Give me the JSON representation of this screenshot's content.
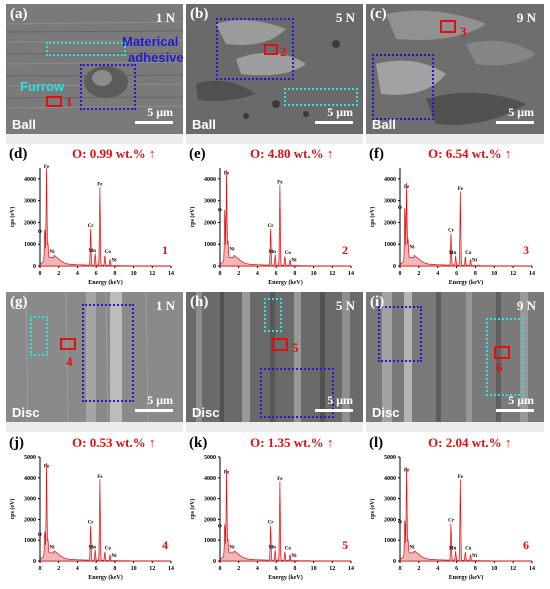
{
  "colors": {
    "spectrum_fill": "#f4b6b6",
    "spectrum_line": "#e01010",
    "blue_box": "#1f1fd0",
    "cyan_box": "#2fe0e0",
    "red_box": "#e01010"
  },
  "sem_panels": [
    {
      "letter": "(a)",
      "load": "1 N",
      "surface": "Ball",
      "scale": "5 μm",
      "marker": "1",
      "annotations": [
        "Materical",
        "adhesive",
        "Furrow"
      ]
    },
    {
      "letter": "(b)",
      "load": "5 N",
      "surface": "Ball",
      "scale": "5 μm",
      "marker": "2"
    },
    {
      "letter": "(c)",
      "load": "9 N",
      "surface": "Ball",
      "scale": "5 μm",
      "marker": "3"
    },
    {
      "letter": "(g)",
      "load": "1 N",
      "surface": "Disc",
      "scale": "5 μm",
      "marker": "4"
    },
    {
      "letter": "(h)",
      "load": "5 N",
      "surface": "Disc",
      "scale": "5 μm",
      "marker": "5"
    },
    {
      "letter": "(i)",
      "load": "9 N",
      "surface": "Disc",
      "scale": "5 μm",
      "marker": "6"
    }
  ],
  "eds_panels": [
    {
      "letter": "(d)",
      "oxygen": "O: 0.99 wt.% ↑",
      "spot": "1"
    },
    {
      "letter": "(e)",
      "oxygen": "O: 4.80 wt.% ↑",
      "spot": "2"
    },
    {
      "letter": "(f)",
      "oxygen": "O: 6.54 wt.% ↑",
      "spot": "3"
    },
    {
      "letter": "(j)",
      "oxygen": "O: 0.53 wt.% ↑",
      "spot": "4"
    },
    {
      "letter": "(k)",
      "oxygen": "O: 1.35 wt.% ↑",
      "spot": "5"
    },
    {
      "letter": "(l)",
      "oxygen": "O: 2.04 wt.% ↑",
      "spot": "6"
    }
  ],
  "chart_data": [
    {
      "type": "line",
      "xlabel": "Energy (keV)",
      "ylabel": "cps (eV)",
      "xlim": [
        0,
        14
      ],
      "ylim": [
        0,
        4500
      ],
      "xticks": [
        0,
        2,
        4,
        6,
        8,
        10,
        12,
        14
      ],
      "yticks": [
        0,
        1000,
        2000,
        3000,
        4000
      ],
      "peaks": [
        {
          "label": "Fe",
          "x": 0.7,
          "y": 4400
        },
        {
          "label": "O",
          "x": 0.52,
          "y": 1600
        },
        {
          "label": "Ni",
          "x": 0.85,
          "y": 700
        },
        {
          "label": "Cr",
          "x": 5.41,
          "y": 1700
        },
        {
          "label": "Mn",
          "x": 5.9,
          "y": 550
        },
        {
          "label": "Fe",
          "x": 6.4,
          "y": 3600
        },
        {
          "label": "Co",
          "x": 6.93,
          "y": 500
        },
        {
          "label": "Ni",
          "x": 7.48,
          "y": 300
        }
      ]
    },
    {
      "type": "line",
      "xlabel": "Energy (keV)",
      "ylabel": "cps (eV)",
      "xlim": [
        0,
        14
      ],
      "ylim": [
        0,
        4500
      ],
      "xticks": [
        0,
        2,
        4,
        6,
        8,
        10,
        12,
        14
      ],
      "yticks": [
        0,
        1000,
        2000,
        3000,
        4000
      ],
      "peaks": [
        {
          "label": "Fe",
          "x": 0.7,
          "y": 4100
        },
        {
          "label": "O",
          "x": 0.52,
          "y": 2600
        },
        {
          "label": "Ni",
          "x": 0.85,
          "y": 800
        },
        {
          "label": "Cr",
          "x": 5.41,
          "y": 1700
        },
        {
          "label": "Mn",
          "x": 5.9,
          "y": 500
        },
        {
          "label": "Fe",
          "x": 6.4,
          "y": 3700
        },
        {
          "label": "Co",
          "x": 6.93,
          "y": 450
        },
        {
          "label": "Ni",
          "x": 7.48,
          "y": 300
        }
      ]
    },
    {
      "type": "line",
      "xlabel": "Energy (keV)",
      "ylabel": "cps (eV)",
      "xlim": [
        0,
        14
      ],
      "ylim": [
        0,
        4500
      ],
      "xticks": [
        0,
        2,
        4,
        6,
        8,
        10,
        12,
        14
      ],
      "yticks": [
        0,
        1000,
        2000,
        3000,
        4000
      ],
      "peaks": [
        {
          "label": "Fe",
          "x": 0.7,
          "y": 3500
        },
        {
          "label": "O",
          "x": 0.52,
          "y": 2700
        },
        {
          "label": "Ni",
          "x": 0.85,
          "y": 900
        },
        {
          "label": "Cr",
          "x": 5.41,
          "y": 1500
        },
        {
          "label": "Mn",
          "x": 5.9,
          "y": 450
        },
        {
          "label": "Fe",
          "x": 6.4,
          "y": 3400
        },
        {
          "label": "Co",
          "x": 6.93,
          "y": 450
        },
        {
          "label": "Ni",
          "x": 7.48,
          "y": 300
        }
      ]
    },
    {
      "type": "line",
      "xlabel": "Energy (keV)",
      "ylabel": "cps (eV)",
      "xlim": [
        0,
        14
      ],
      "ylim": [
        0,
        5000
      ],
      "xticks": [
        0,
        2,
        4,
        6,
        8,
        10,
        12,
        14
      ],
      "yticks": [
        0,
        1000,
        2000,
        3000,
        4000,
        5000
      ],
      "peaks": [
        {
          "label": "Fe",
          "x": 0.7,
          "y": 4400
        },
        {
          "label": "O",
          "x": 0.52,
          "y": 1300
        },
        {
          "label": "Ni",
          "x": 0.85,
          "y": 700
        },
        {
          "label": "Cr",
          "x": 5.41,
          "y": 1700
        },
        {
          "label": "Mn",
          "x": 5.9,
          "y": 500
        },
        {
          "label": "Fe",
          "x": 6.4,
          "y": 3900
        },
        {
          "label": "Co",
          "x": 6.93,
          "y": 450
        },
        {
          "label": "Ni",
          "x": 7.48,
          "y": 300
        }
      ]
    },
    {
      "type": "line",
      "xlabel": "Energy (keV)",
      "ylabel": "cps (eV)",
      "xlim": [
        0,
        14
      ],
      "ylim": [
        0,
        5000
      ],
      "xticks": [
        0,
        2,
        4,
        6,
        8,
        10,
        12,
        14
      ],
      "yticks": [
        0,
        1000,
        2000,
        3000,
        4000,
        5000
      ],
      "peaks": [
        {
          "label": "Fe",
          "x": 0.7,
          "y": 4100
        },
        {
          "label": "O",
          "x": 0.52,
          "y": 1700
        },
        {
          "label": "Ni",
          "x": 0.85,
          "y": 700
        },
        {
          "label": "Cr",
          "x": 5.41,
          "y": 1700
        },
        {
          "label": "Mn",
          "x": 5.9,
          "y": 500
        },
        {
          "label": "Fe",
          "x": 6.4,
          "y": 3800
        },
        {
          "label": "Co",
          "x": 6.93,
          "y": 450
        },
        {
          "label": "Ni",
          "x": 7.48,
          "y": 300
        }
      ]
    },
    {
      "type": "line",
      "xlabel": "Energy (keV)",
      "ylabel": "cps (eV)",
      "xlim": [
        0,
        14
      ],
      "ylim": [
        0,
        5000
      ],
      "xticks": [
        0,
        2,
        4,
        6,
        8,
        10,
        12,
        14
      ],
      "yticks": [
        0,
        1000,
        2000,
        3000,
        4000,
        5000
      ],
      "peaks": [
        {
          "label": "Fe",
          "x": 0.7,
          "y": 4200
        },
        {
          "label": "O",
          "x": 0.52,
          "y": 1900
        },
        {
          "label": "Ni",
          "x": 0.85,
          "y": 700
        },
        {
          "label": "Cr",
          "x": 5.41,
          "y": 1800
        },
        {
          "label": "Mn",
          "x": 5.9,
          "y": 450
        },
        {
          "label": "Fe",
          "x": 6.4,
          "y": 3900
        },
        {
          "label": "Co",
          "x": 6.93,
          "y": 450
        },
        {
          "label": "Ni",
          "x": 7.48,
          "y": 300
        }
      ]
    }
  ]
}
